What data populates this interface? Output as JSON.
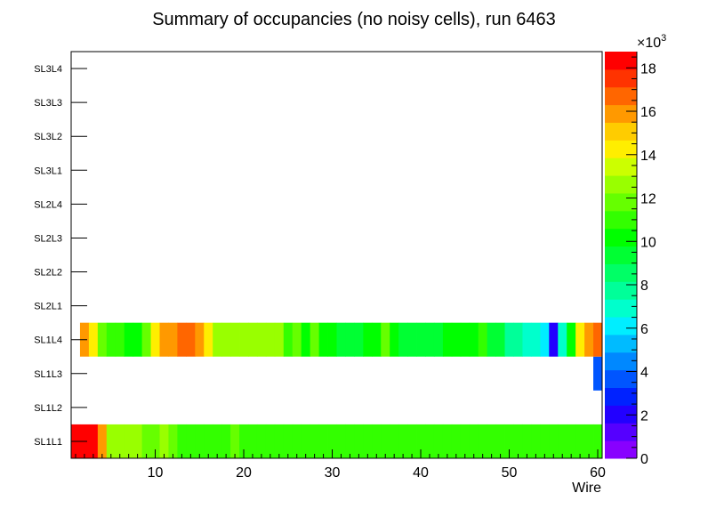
{
  "chart_data": {
    "type": "heatmap",
    "title": "Summary of occupancies (no noisy cells), run 6463",
    "xlabel": "Wire",
    "ylabel": "",
    "xlim": [
      0.5,
      60.5
    ],
    "x_ticks": [
      10,
      20,
      30,
      40,
      50,
      60
    ],
    "x_tick_labels": [
      "10",
      "20",
      "30",
      "40",
      "50",
      "60"
    ],
    "y_categories": [
      "SL1L1",
      "SL1L2",
      "SL1L3",
      "SL1L4",
      "SL2L1",
      "SL2L2",
      "SL2L3",
      "SL2L4",
      "SL3L1",
      "SL3L2",
      "SL3L3",
      "SL3L4"
    ],
    "z_range": [
      0,
      18750
    ],
    "z_ticks": [
      0,
      2,
      4,
      6,
      8,
      10,
      12,
      14,
      16,
      18
    ],
    "z_tick_labels": [
      "0",
      "2",
      "4",
      "6",
      "8",
      "10",
      "12",
      "14",
      "16",
      "18"
    ],
    "z_exponent_label": "×10",
    "z_exponent_power": "3",
    "palette": [
      "#8800ff",
      "#5500ff",
      "#2200ff",
      "#0022ff",
      "#0055ff",
      "#0088ff",
      "#00bbff",
      "#00eeff",
      "#00ffcc",
      "#00ff99",
      "#00ff66",
      "#00ff33",
      "#00ff00",
      "#33ff00",
      "#66ff00",
      "#99ff00",
      "#ccff00",
      "#ffee00",
      "#ffcc00",
      "#ff9900",
      "#ff6600",
      "#ff3300",
      "#ff0000"
    ],
    "series": [
      {
        "name": "SL1L1",
        "values": [
          18500,
          18500,
          18500,
          16000,
          13000,
          13000,
          13000,
          13000,
          12000,
          12000,
          13000,
          12000,
          11000,
          11000,
          11000,
          11000,
          11000,
          11000,
          12000,
          11000,
          11000,
          11000,
          11000,
          11000,
          11000,
          11000,
          11000,
          11000,
          11000,
          11000,
          11000,
          11000,
          11000,
          11000,
          11000,
          11000,
          11000,
          11000,
          11000,
          11000,
          11000,
          11000,
          11000,
          11000,
          11000,
          11000,
          11000,
          11000,
          11000,
          11000,
          11000,
          11000,
          11000,
          11000,
          11000,
          11000,
          11000,
          11000,
          11000,
          11000
        ]
      },
      {
        "name": "SL1L2",
        "values": []
      },
      {
        "name": "SL1L3",
        "values": [
          null,
          null,
          null,
          null,
          null,
          null,
          null,
          null,
          null,
          null,
          null,
          null,
          null,
          null,
          null,
          null,
          null,
          null,
          null,
          null,
          null,
          null,
          null,
          null,
          null,
          null,
          null,
          null,
          null,
          null,
          null,
          null,
          null,
          null,
          null,
          null,
          null,
          null,
          null,
          null,
          null,
          null,
          null,
          null,
          null,
          null,
          null,
          null,
          null,
          null,
          null,
          null,
          null,
          null,
          null,
          null,
          null,
          null,
          null,
          3500
        ]
      },
      {
        "name": "SL1L4",
        "values": [
          null,
          16000,
          14000,
          12000,
          11000,
          11000,
          10000,
          10000,
          12000,
          14000,
          16000,
          16000,
          17000,
          17000,
          16000,
          14000,
          13000,
          13000,
          13000,
          13000,
          13000,
          13000,
          13000,
          13000,
          11000,
          12000,
          10000,
          12000,
          10000,
          10000,
          9000,
          9000,
          9000,
          10000,
          10000,
          12000,
          10000,
          9000,
          9000,
          9000,
          9000,
          9000,
          10000,
          10000,
          10000,
          10000,
          11000,
          9000,
          9000,
          8000,
          8000,
          7000,
          7000,
          6000,
          2000,
          7000,
          10000,
          14000,
          16000,
          17000
        ]
      },
      {
        "name": "SL2L1",
        "values": []
      },
      {
        "name": "SL2L2",
        "values": []
      },
      {
        "name": "SL2L3",
        "values": []
      },
      {
        "name": "SL2L4",
        "values": []
      },
      {
        "name": "SL3L1",
        "values": []
      },
      {
        "name": "SL3L2",
        "values": []
      },
      {
        "name": "SL3L3",
        "values": []
      },
      {
        "name": "SL3L4",
        "values": []
      }
    ]
  }
}
